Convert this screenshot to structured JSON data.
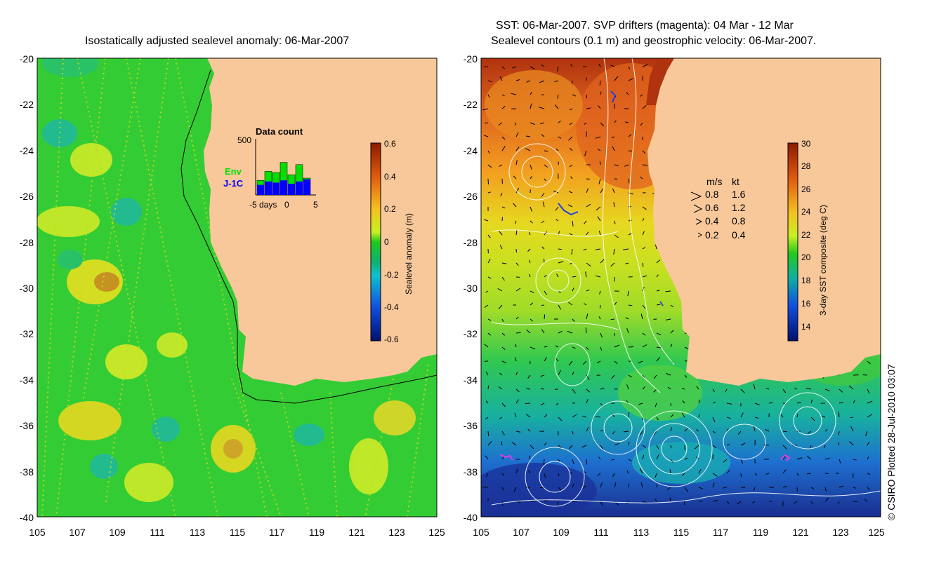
{
  "left_panel": {
    "title": "Isostatically adjusted sealevel anomaly: 06-Mar-2007",
    "lon_ticks": [
      "105",
      "107",
      "109",
      "111",
      "113",
      "115",
      "117",
      "119",
      "121",
      "123",
      "125"
    ],
    "lat_ticks": [
      "-20",
      "-22",
      "-24",
      "-26",
      "-28",
      "-30",
      "-32",
      "-34",
      "-36",
      "-38",
      "-40"
    ],
    "colorbar": {
      "label": "Sealevel anomaly (m)",
      "ticks": [
        "0.6",
        "0.4",
        "0.2",
        "0",
        "-0.2",
        "-0.4",
        "-0.6"
      ]
    },
    "inset": {
      "title": "Data count",
      "ymax_label": "500",
      "xlabel": "days",
      "xtick_left": "-5",
      "xtick_mid": "0",
      "xtick_right": "5",
      "legend_env": "Env",
      "legend_j1c": "J-1C",
      "env_counts": [
        130,
        210,
        200,
        290,
        180,
        270,
        150
      ],
      "j1c_counts": [
        90,
        120,
        110,
        130,
        100,
        120,
        140
      ]
    }
  },
  "right_panel": {
    "title_line1": "SST: 06-Mar-2007. SVP drifters (magenta): 04 Mar - 12 Mar",
    "title_line2": "Sealevel contours (0.1 m) and geostrophic velocity: 06-Mar-2007.",
    "lon_ticks": [
      "105",
      "107",
      "109",
      "111",
      "113",
      "115",
      "117",
      "119",
      "121",
      "123",
      "125"
    ],
    "lat_ticks": [
      "-20",
      "-22",
      "-24",
      "-26",
      "-28",
      "-30",
      "-32",
      "-34",
      "-36",
      "-38",
      "-40"
    ],
    "colorbar": {
      "label": "3-day SST composite (deg C)",
      "ticks": [
        "30",
        "28",
        "26",
        "24",
        "22",
        "20",
        "18",
        "16",
        "14"
      ]
    },
    "velocity_legend": {
      "header_ms": "m/s",
      "header_kt": "kt",
      "rows": [
        {
          "ms": "0.8",
          "kt": "1.6"
        },
        {
          "ms": "0.6",
          "kt": "1.2"
        },
        {
          "ms": "0.4",
          "kt": "0.8"
        },
        {
          "ms": "0.2",
          "kt": "0.4"
        }
      ]
    }
  },
  "credit": "© CSIRO Plotted 28-Jul-2010 03:07",
  "colors": {
    "land": "#f8c89a",
    "ocean_green": "#3cd23c",
    "sst_warm": "#c8501e",
    "sst_cold": "#1e3ca0",
    "env": "#00e000",
    "j1c": "#0000ff"
  }
}
